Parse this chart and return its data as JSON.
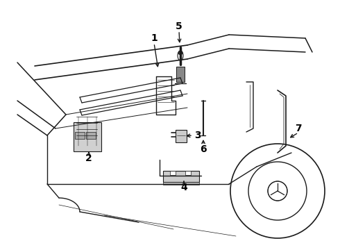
{
  "background_color": "#ffffff",
  "line_color": "#1a1a1a",
  "label_color": "#000000",
  "fig_width": 4.9,
  "fig_height": 3.6,
  "dpi": 100,
  "label_fontsize": 10,
  "lw": 1.0,
  "tlw": 0.7
}
